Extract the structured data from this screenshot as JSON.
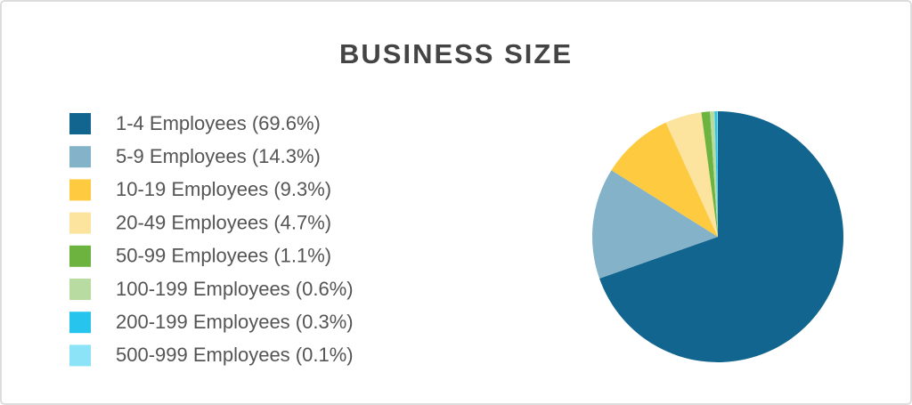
{
  "chart_data": {
    "type": "pie",
    "title": "BUSINESS SIZE",
    "categories": [
      "1-4 Employees (69.6%)",
      "5-9 Employees (14.3%)",
      "10-19 Employees (9.3%)",
      "20-49 Employees (4.7%)",
      "50-99 Employees (1.1%)",
      "100-199 Employees (0.6%)",
      "200-199 Employees (0.3%)",
      "500-999 Employees (0.1%)"
    ],
    "values": [
      69.6,
      14.3,
      9.3,
      4.7,
      1.1,
      0.6,
      0.3,
      0.1
    ],
    "colors": [
      "#12658f",
      "#84b2c9",
      "#fdca40",
      "#fde49e",
      "#6db33f",
      "#b7dba0",
      "#27c4ee",
      "#8ce2f7"
    ],
    "legend": "left"
  }
}
